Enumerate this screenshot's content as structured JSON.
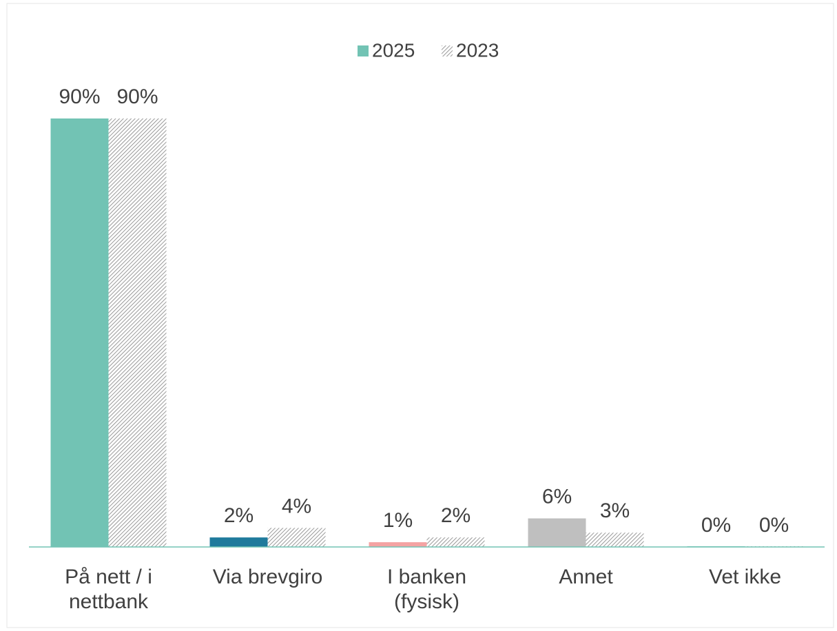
{
  "chart_data": {
    "type": "bar",
    "categories": [
      "På nett / i nettbank",
      "Via brevgiro",
      "I banken (fysisk)",
      "Annet",
      "Vet ikke"
    ],
    "series": [
      {
        "name": "2025",
        "color": "#72c3b4",
        "colors": [
          "#72c3b4",
          "#1f7a9c",
          "#f4a3a3",
          "#bfbfbf",
          "#72c3b4"
        ],
        "hatch": false,
        "values": [
          90,
          2,
          1,
          6,
          0
        ],
        "value_labels": [
          "90%",
          "2%",
          "1%",
          "6%",
          "0%"
        ]
      },
      {
        "name": "2023",
        "color": "#7f7f7f",
        "hatch": true,
        "values": [
          90,
          4,
          2,
          3,
          0
        ],
        "value_labels": [
          "90%",
          "4%",
          "2%",
          "3%",
          "0%"
        ]
      }
    ],
    "ylim": [
      0,
      90
    ],
    "grid": false,
    "legend": "top"
  }
}
